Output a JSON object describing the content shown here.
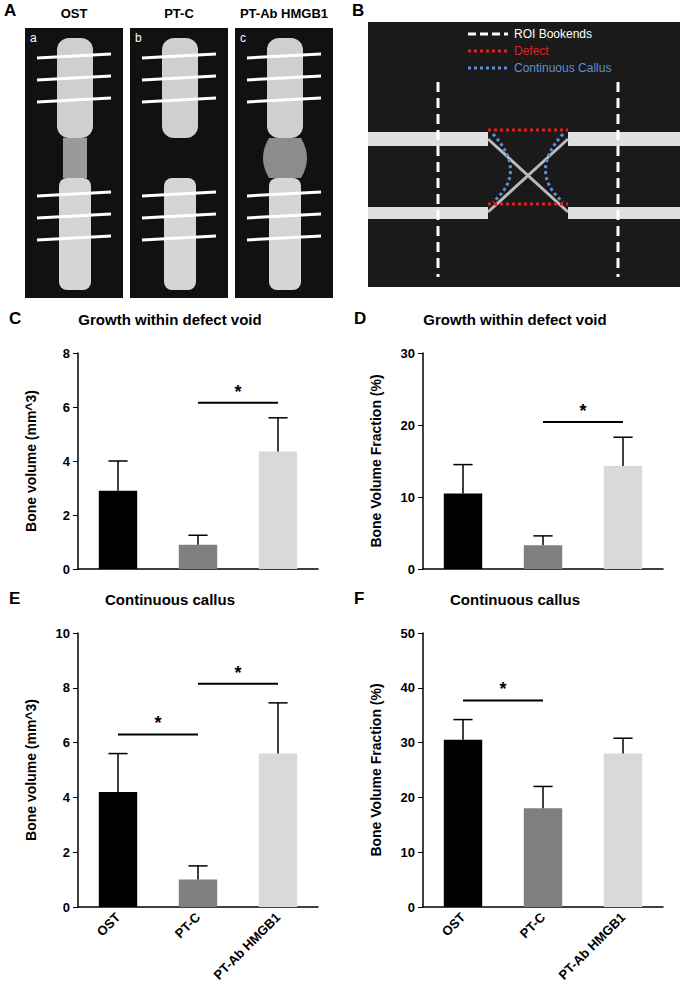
{
  "panels": [
    {
      "label": "A",
      "images": [
        {
          "sublabel": "a",
          "title": "OST"
        },
        {
          "sublabel": "b",
          "title": "PT-C"
        },
        {
          "sublabel": "c",
          "title": "PT-Ab HMGB1"
        }
      ]
    },
    {
      "label": "B",
      "legend": [
        {
          "text": "ROI Bookends",
          "color": "#ffffff",
          "line_style": "dashed"
        },
        {
          "text": "Defect",
          "color": "#e02020",
          "line_style": "dotted"
        },
        {
          "text": "Continuous Callus",
          "color": "#5b8fd6",
          "line_style": "dotted"
        }
      ]
    }
  ],
  "chart_data": [
    {
      "type": "bar",
      "panel": "C",
      "title": "Growth within defect void",
      "y_label": "Bone volume (mm^3)",
      "categories": [
        null,
        null,
        null
      ],
      "values": [
        2.9,
        0.9,
        4.35
      ],
      "errors": [
        1.1,
        0.35,
        1.25
      ],
      "colors": [
        "#000000",
        "#7f7f7f",
        "#d9d9d9"
      ],
      "ylim": [
        0,
        8
      ],
      "yticks": [
        0,
        2,
        4,
        6,
        8
      ],
      "tick_labels": "y",
      "grid": false,
      "significance": [
        {
          "between": [
            1,
            2
          ],
          "label": "*"
        }
      ]
    },
    {
      "type": "bar",
      "panel": "D",
      "title": "Growth within defect void",
      "y_label": "Bone Volume Fraction (%)",
      "categories": [
        null,
        null,
        null
      ],
      "values": [
        10.5,
        3.3,
        14.3
      ],
      "errors": [
        4.0,
        1.3,
        4.0
      ],
      "colors": [
        "#000000",
        "#7f7f7f",
        "#d9d9d9"
      ],
      "ylim": [
        0,
        30
      ],
      "yticks": [
        0,
        10,
        20,
        30
      ],
      "tick_labels": "y",
      "grid": false,
      "significance": [
        {
          "between": [
            1,
            2
          ],
          "label": "*"
        }
      ]
    },
    {
      "type": "bar",
      "panel": "E",
      "title": "Continuous callus",
      "y_label": "Bone volume (mm^3)",
      "categories": [
        "OST",
        "PT-C",
        "PT-Ab HMGB1"
      ],
      "values": [
        4.2,
        1.0,
        5.6
      ],
      "errors": [
        1.4,
        0.5,
        1.85
      ],
      "colors": [
        "#000000",
        "#7f7f7f",
        "#d9d9d9"
      ],
      "ylim": [
        0,
        10
      ],
      "yticks": [
        0,
        2,
        4,
        6,
        8,
        10
      ],
      "grid": false,
      "significance": [
        {
          "between": [
            0,
            1
          ],
          "label": "*"
        },
        {
          "between": [
            1,
            2
          ],
          "label": "*"
        }
      ]
    },
    {
      "type": "bar",
      "panel": "F",
      "title": "Continuous callus",
      "y_label": "Bone Volume Fraction (%)",
      "categories": [
        "OST",
        "PT-C",
        "PT-Ab HMGB1"
      ],
      "values": [
        30.5,
        18.0,
        28.0
      ],
      "errors": [
        3.7,
        4.0,
        2.8
      ],
      "colors": [
        "#000000",
        "#7f7f7f",
        "#d9d9d9"
      ],
      "ylim": [
        0,
        50
      ],
      "yticks": [
        0,
        10,
        20,
        30,
        40,
        50
      ],
      "grid": false,
      "significance": [
        {
          "between": [
            0,
            1
          ],
          "label": "*"
        }
      ]
    }
  ]
}
